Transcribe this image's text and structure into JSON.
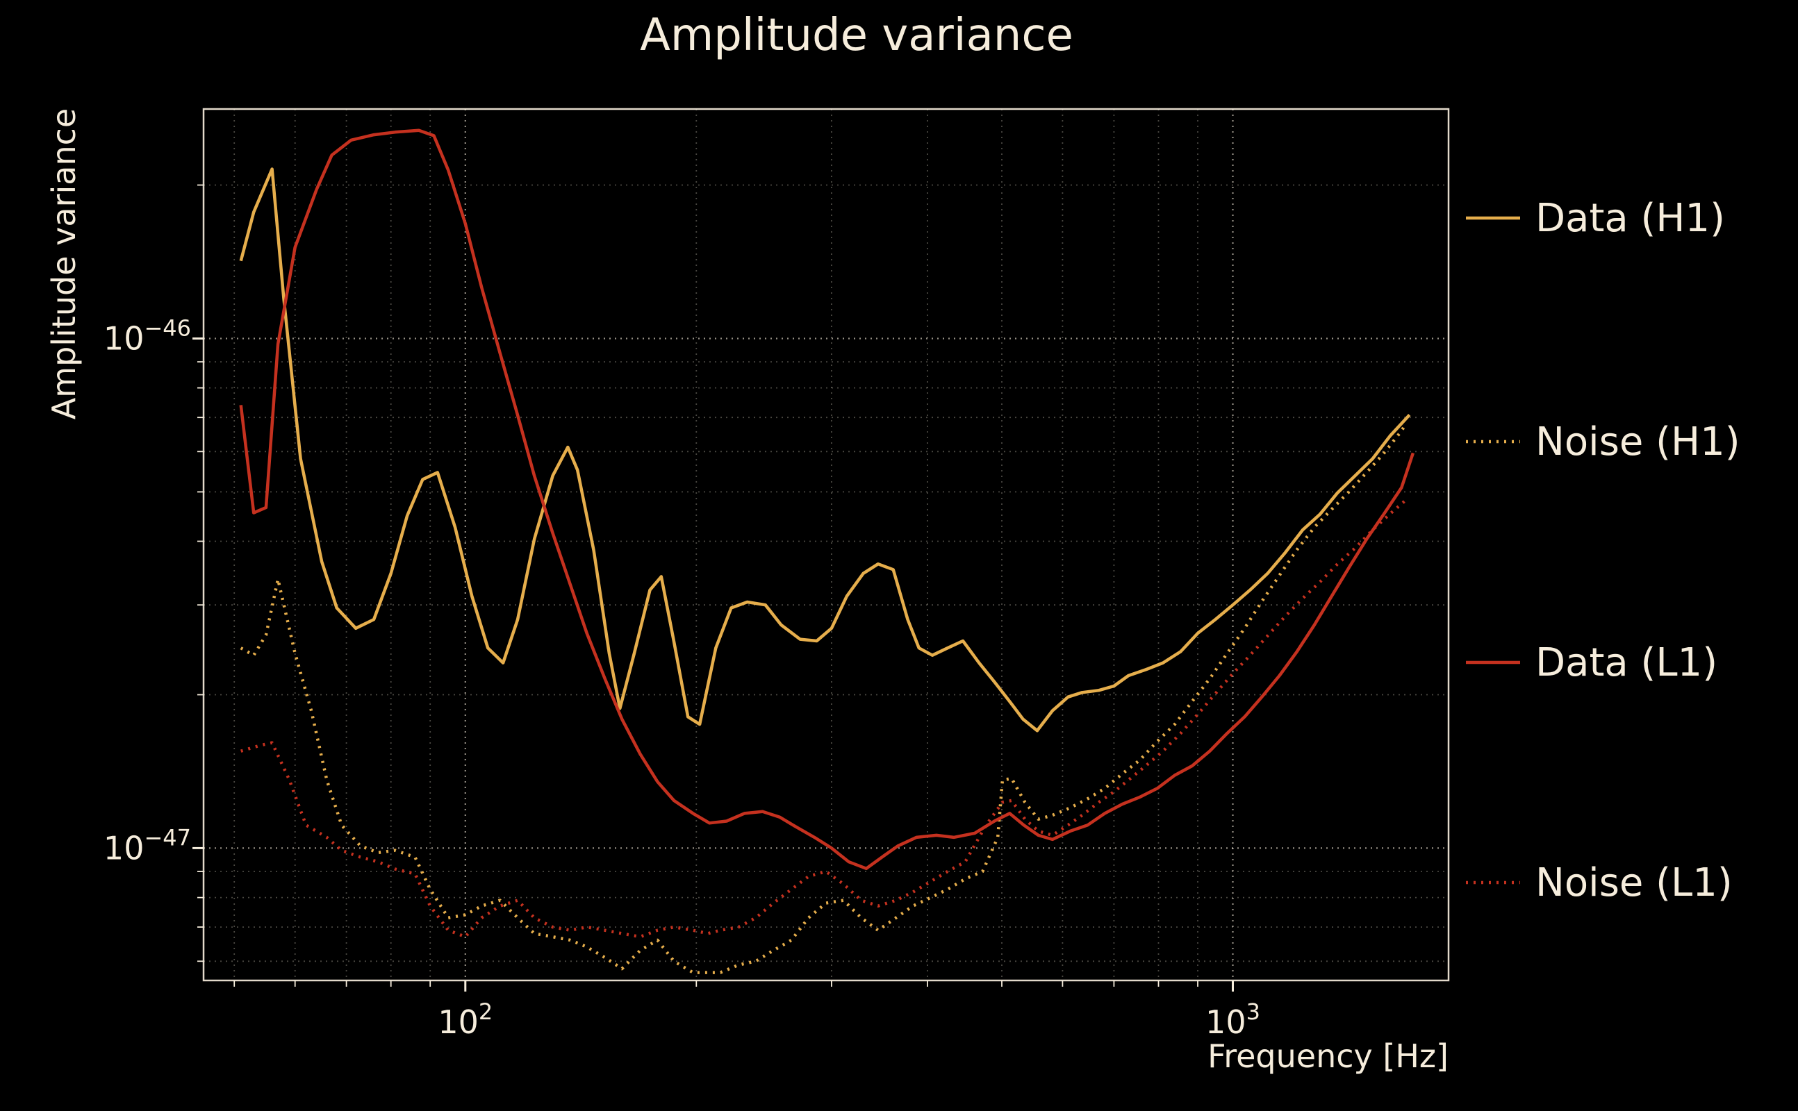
{
  "chart_data": {
    "type": "line",
    "title": "Amplitude variance",
    "xlabel": "Frequency [Hz]",
    "ylabel": "Amplitude variance",
    "xscale": "log",
    "yscale": "log",
    "xlim": [
      45.6,
      1910
    ],
    "ylim": [
      5.5e-48,
      2.82e-46
    ],
    "grid": true,
    "legend_position": "right-outside",
    "colors": {
      "h1": "#e6ae4c",
      "l1": "#c5311f",
      "text": "#f6eddc",
      "background": "#000000"
    },
    "x_ticks": [
      {
        "v": 100,
        "base": "10",
        "exp": "2"
      },
      {
        "v": 1000,
        "base": "10",
        "exp": "3"
      }
    ],
    "y_ticks": [
      {
        "v": 1e-46,
        "base": "10",
        "exp": "−46"
      },
      {
        "v": 1e-47,
        "base": "10",
        "exp": "−47"
      }
    ],
    "series": [
      {
        "name": "Data (H1)",
        "color": "#e6ae4c",
        "linestyle": "solid",
        "points": [
          [
            51,
            1.42e-46
          ],
          [
            53,
            1.77e-46
          ],
          [
            56,
            2.15e-46
          ],
          [
            58,
            1.2e-46
          ],
          [
            61,
            5.81e-47
          ],
          [
            65,
            3.65e-47
          ],
          [
            68,
            2.96e-47
          ],
          [
            72,
            2.7e-47
          ],
          [
            76,
            2.81e-47
          ],
          [
            80,
            3.46e-47
          ],
          [
            84,
            4.49e-47
          ],
          [
            88,
            5.29e-47
          ],
          [
            92,
            5.46e-47
          ],
          [
            97,
            4.26e-47
          ],
          [
            102,
            3.12e-47
          ],
          [
            107,
            2.47e-47
          ],
          [
            112,
            2.31e-47
          ],
          [
            117,
            2.81e-47
          ],
          [
            123,
            4.04e-47
          ],
          [
            130,
            5.38e-47
          ],
          [
            136,
            6.12e-47
          ],
          [
            140,
            5.52e-47
          ],
          [
            147,
            3.84e-47
          ],
          [
            154,
            2.41e-47
          ],
          [
            159,
            1.88e-47
          ],
          [
            166,
            2.41e-47
          ],
          [
            174,
            3.21e-47
          ],
          [
            180,
            3.41e-47
          ],
          [
            187,
            2.54e-47
          ],
          [
            195,
            1.81e-47
          ],
          [
            202,
            1.75e-47
          ],
          [
            212,
            2.47e-47
          ],
          [
            222,
            2.96e-47
          ],
          [
            233,
            3.04e-47
          ],
          [
            246,
            3e-47
          ],
          [
            258,
            2.74e-47
          ],
          [
            273,
            2.57e-47
          ],
          [
            287,
            2.55e-47
          ],
          [
            300,
            2.7e-47
          ],
          [
            314,
            3.12e-47
          ],
          [
            330,
            3.46e-47
          ],
          [
            345,
            3.61e-47
          ],
          [
            361,
            3.52e-47
          ],
          [
            377,
            2.81e-47
          ],
          [
            390,
            2.47e-47
          ],
          [
            406,
            2.39e-47
          ],
          [
            425,
            2.47e-47
          ],
          [
            445,
            2.55e-47
          ],
          [
            467,
            2.31e-47
          ],
          [
            489,
            2.12e-47
          ],
          [
            512,
            1.94e-47
          ],
          [
            533,
            1.79e-47
          ],
          [
            556,
            1.7e-47
          ],
          [
            582,
            1.86e-47
          ],
          [
            610,
            1.98e-47
          ],
          [
            636,
            2.02e-47
          ],
          [
            669,
            2.04e-47
          ],
          [
            700,
            2.08e-47
          ],
          [
            731,
            2.18e-47
          ],
          [
            770,
            2.24e-47
          ],
          [
            811,
            2.31e-47
          ],
          [
            855,
            2.43e-47
          ],
          [
            900,
            2.64e-47
          ],
          [
            949,
            2.81e-47
          ],
          [
            1000,
            3e-47
          ],
          [
            1053,
            3.21e-47
          ],
          [
            1110,
            3.46e-47
          ],
          [
            1170,
            3.8e-47
          ],
          [
            1233,
            4.21e-47
          ],
          [
            1299,
            4.52e-47
          ],
          [
            1369,
            4.98e-47
          ],
          [
            1443,
            5.38e-47
          ],
          [
            1521,
            5.81e-47
          ],
          [
            1603,
            6.44e-47
          ],
          [
            1699,
            7.08e-47
          ]
        ]
      },
      {
        "name": "Noise (H1)",
        "color": "#e6ae4c",
        "linestyle": "dotted",
        "points": [
          [
            51,
            2.47e-47
          ],
          [
            53,
            2.39e-47
          ],
          [
            55,
            2.62e-47
          ],
          [
            57,
            3.37e-47
          ],
          [
            60,
            2.41e-47
          ],
          [
            63,
            1.86e-47
          ],
          [
            66,
            1.36e-47
          ],
          [
            69,
            1.11e-47
          ],
          [
            73,
            1.01e-47
          ],
          [
            77,
            9.8e-48
          ],
          [
            81,
            9.9e-48
          ],
          [
            86,
            9.6e-48
          ],
          [
            90,
            8.3e-48
          ],
          [
            95,
            7.3e-48
          ],
          [
            100,
            7.4e-48
          ],
          [
            105,
            7.7e-48
          ],
          [
            111,
            7.9e-48
          ],
          [
            117,
            7.3e-48
          ],
          [
            123,
            6.8e-48
          ],
          [
            130,
            6.7e-48
          ],
          [
            137,
            6.6e-48
          ],
          [
            144,
            6.4e-48
          ],
          [
            152,
            6.1e-48
          ],
          [
            160,
            5.8e-48
          ],
          [
            169,
            6.3e-48
          ],
          [
            178,
            6.6e-48
          ],
          [
            187,
            6e-48
          ],
          [
            198,
            5.7e-48
          ],
          [
            207,
            5.7e-48
          ],
          [
            215,
            5.7e-48
          ],
          [
            227,
            5.9e-48
          ],
          [
            239,
            6e-48
          ],
          [
            252,
            6.3e-48
          ],
          [
            266,
            6.6e-48
          ],
          [
            280,
            7.3e-48
          ],
          [
            295,
            7.8e-48
          ],
          [
            311,
            7.9e-48
          ],
          [
            328,
            7.3e-48
          ],
          [
            345,
            6.9e-48
          ],
          [
            364,
            7.3e-48
          ],
          [
            383,
            7.7e-48
          ],
          [
            404,
            8e-48
          ],
          [
            425,
            8.3e-48
          ],
          [
            448,
            8.7e-48
          ],
          [
            472,
            9e-48
          ],
          [
            494,
            1.05e-47
          ],
          [
            501,
            1.36e-47
          ],
          [
            515,
            1.37e-47
          ],
          [
            536,
            1.23e-47
          ],
          [
            558,
            1.14e-47
          ],
          [
            582,
            1.16e-47
          ],
          [
            614,
            1.2e-47
          ],
          [
            647,
            1.25e-47
          ],
          [
            681,
            1.31e-47
          ],
          [
            718,
            1.4e-47
          ],
          [
            757,
            1.49e-47
          ],
          [
            797,
            1.62e-47
          ],
          [
            840,
            1.75e-47
          ],
          [
            885,
            1.94e-47
          ],
          [
            933,
            2.15e-47
          ],
          [
            983,
            2.41e-47
          ],
          [
            1036,
            2.7e-47
          ],
          [
            1091,
            3.05e-47
          ],
          [
            1150,
            3.43e-47
          ],
          [
            1212,
            3.85e-47
          ],
          [
            1277,
            4.26e-47
          ],
          [
            1345,
            4.62e-47
          ],
          [
            1418,
            5.01e-47
          ],
          [
            1494,
            5.46e-47
          ],
          [
            1574,
            5.96e-47
          ],
          [
            1659,
            6.59e-47
          ],
          [
            1676,
            6.76e-47
          ]
        ]
      },
      {
        "name": "Data (L1)",
        "color": "#c5311f",
        "linestyle": "solid",
        "points": [
          [
            51,
            7.4e-47
          ],
          [
            53,
            4.55e-47
          ],
          [
            55,
            4.66e-47
          ],
          [
            57,
            9.75e-47
          ],
          [
            60,
            1.51e-46
          ],
          [
            64,
            1.96e-46
          ],
          [
            67,
            2.29e-46
          ],
          [
            71,
            2.45e-46
          ],
          [
            76,
            2.51e-46
          ],
          [
            81,
            2.54e-46
          ],
          [
            87,
            2.56e-46
          ],
          [
            91,
            2.5e-46
          ],
          [
            95,
            2.14e-46
          ],
          [
            100,
            1.68e-46
          ],
          [
            105,
            1.26e-46
          ],
          [
            111,
            9.35e-47
          ],
          [
            117,
            7.07e-47
          ],
          [
            123,
            5.38e-47
          ],
          [
            130,
            4.15e-47
          ],
          [
            137,
            3.29e-47
          ],
          [
            144,
            2.64e-47
          ],
          [
            152,
            2.15e-47
          ],
          [
            160,
            1.79e-47
          ],
          [
            169,
            1.53e-47
          ],
          [
            178,
            1.35e-47
          ],
          [
            187,
            1.24e-47
          ],
          [
            198,
            1.17e-47
          ],
          [
            208,
            1.12e-47
          ],
          [
            219,
            1.13e-47
          ],
          [
            231,
            1.17e-47
          ],
          [
            244,
            1.18e-47
          ],
          [
            257,
            1.15e-47
          ],
          [
            270,
            1.1e-47
          ],
          [
            285,
            1.05e-47
          ],
          [
            300,
            1e-47
          ],
          [
            316,
            9.4e-48
          ],
          [
            333,
            9.12e-48
          ],
          [
            349,
            9.6e-48
          ],
          [
            366,
            1.01e-47
          ],
          [
            387,
            1.05e-47
          ],
          [
            411,
            1.06e-47
          ],
          [
            433,
            1.05e-47
          ],
          [
            461,
            1.07e-47
          ],
          [
            489,
            1.13e-47
          ],
          [
            512,
            1.17e-47
          ],
          [
            534,
            1.11e-47
          ],
          [
            558,
            1.06e-47
          ],
          [
            582,
            1.04e-47
          ],
          [
            614,
            1.08e-47
          ],
          [
            647,
            1.11e-47
          ],
          [
            681,
            1.17e-47
          ],
          [
            718,
            1.22e-47
          ],
          [
            757,
            1.26e-47
          ],
          [
            797,
            1.31e-47
          ],
          [
            840,
            1.39e-47
          ],
          [
            885,
            1.45e-47
          ],
          [
            933,
            1.55e-47
          ],
          [
            983,
            1.68e-47
          ],
          [
            1036,
            1.81e-47
          ],
          [
            1091,
            1.98e-47
          ],
          [
            1150,
            2.18e-47
          ],
          [
            1212,
            2.43e-47
          ],
          [
            1277,
            2.74e-47
          ],
          [
            1345,
            3.12e-47
          ],
          [
            1418,
            3.56e-47
          ],
          [
            1494,
            4.04e-47
          ],
          [
            1574,
            4.53e-47
          ],
          [
            1659,
            5.1e-47
          ],
          [
            1717,
            5.96e-47
          ]
        ]
      },
      {
        "name": "Noise (L1)",
        "color": "#c5311f",
        "linestyle": "dotted",
        "points": [
          [
            51,
            1.55e-47
          ],
          [
            54,
            1.59e-47
          ],
          [
            56,
            1.61e-47
          ],
          [
            59,
            1.36e-47
          ],
          [
            62,
            1.11e-47
          ],
          [
            66,
            1.05e-47
          ],
          [
            69,
            9.9e-48
          ],
          [
            73,
            9.6e-48
          ],
          [
            77,
            9.4e-48
          ],
          [
            81,
            9.1e-48
          ],
          [
            86,
            8.9e-48
          ],
          [
            90,
            7.7e-48
          ],
          [
            95,
            6.9e-48
          ],
          [
            100,
            6.7e-48
          ],
          [
            105,
            7.3e-48
          ],
          [
            111,
            7.7e-48
          ],
          [
            117,
            7.9e-48
          ],
          [
            123,
            7.3e-48
          ],
          [
            130,
            7e-48
          ],
          [
            137,
            6.9e-48
          ],
          [
            144,
            7e-48
          ],
          [
            152,
            6.9e-48
          ],
          [
            160,
            6.8e-48
          ],
          [
            169,
            6.7e-48
          ],
          [
            178,
            6.9e-48
          ],
          [
            187,
            7e-48
          ],
          [
            198,
            6.9e-48
          ],
          [
            207,
            6.8e-48
          ],
          [
            215,
            6.9e-48
          ],
          [
            227,
            7e-48
          ],
          [
            239,
            7.3e-48
          ],
          [
            252,
            7.8e-48
          ],
          [
            266,
            8.3e-48
          ],
          [
            280,
            8.8e-48
          ],
          [
            295,
            9e-48
          ],
          [
            311,
            8.5e-48
          ],
          [
            328,
            7.9e-48
          ],
          [
            345,
            7.7e-48
          ],
          [
            364,
            7.9e-48
          ],
          [
            383,
            8.2e-48
          ],
          [
            404,
            8.6e-48
          ],
          [
            425,
            9e-48
          ],
          [
            448,
            9.4e-48
          ],
          [
            477,
            1.11e-47
          ],
          [
            501,
            1.23e-47
          ],
          [
            515,
            1.24e-47
          ],
          [
            536,
            1.14e-47
          ],
          [
            558,
            1.08e-47
          ],
          [
            582,
            1.06e-47
          ],
          [
            610,
            1.11e-47
          ],
          [
            636,
            1.16e-47
          ],
          [
            669,
            1.23e-47
          ],
          [
            700,
            1.29e-47
          ],
          [
            731,
            1.36e-47
          ],
          [
            770,
            1.45e-47
          ],
          [
            811,
            1.55e-47
          ],
          [
            855,
            1.68e-47
          ],
          [
            900,
            1.83e-47
          ],
          [
            949,
            2.01e-47
          ],
          [
            1000,
            2.2e-47
          ],
          [
            1053,
            2.39e-47
          ],
          [
            1110,
            2.61e-47
          ],
          [
            1170,
            2.85e-47
          ],
          [
            1233,
            3.09e-47
          ],
          [
            1299,
            3.33e-47
          ],
          [
            1369,
            3.61e-47
          ],
          [
            1443,
            3.88e-47
          ],
          [
            1521,
            4.21e-47
          ],
          [
            1603,
            4.53e-47
          ],
          [
            1686,
            4.84e-47
          ]
        ]
      }
    ]
  }
}
